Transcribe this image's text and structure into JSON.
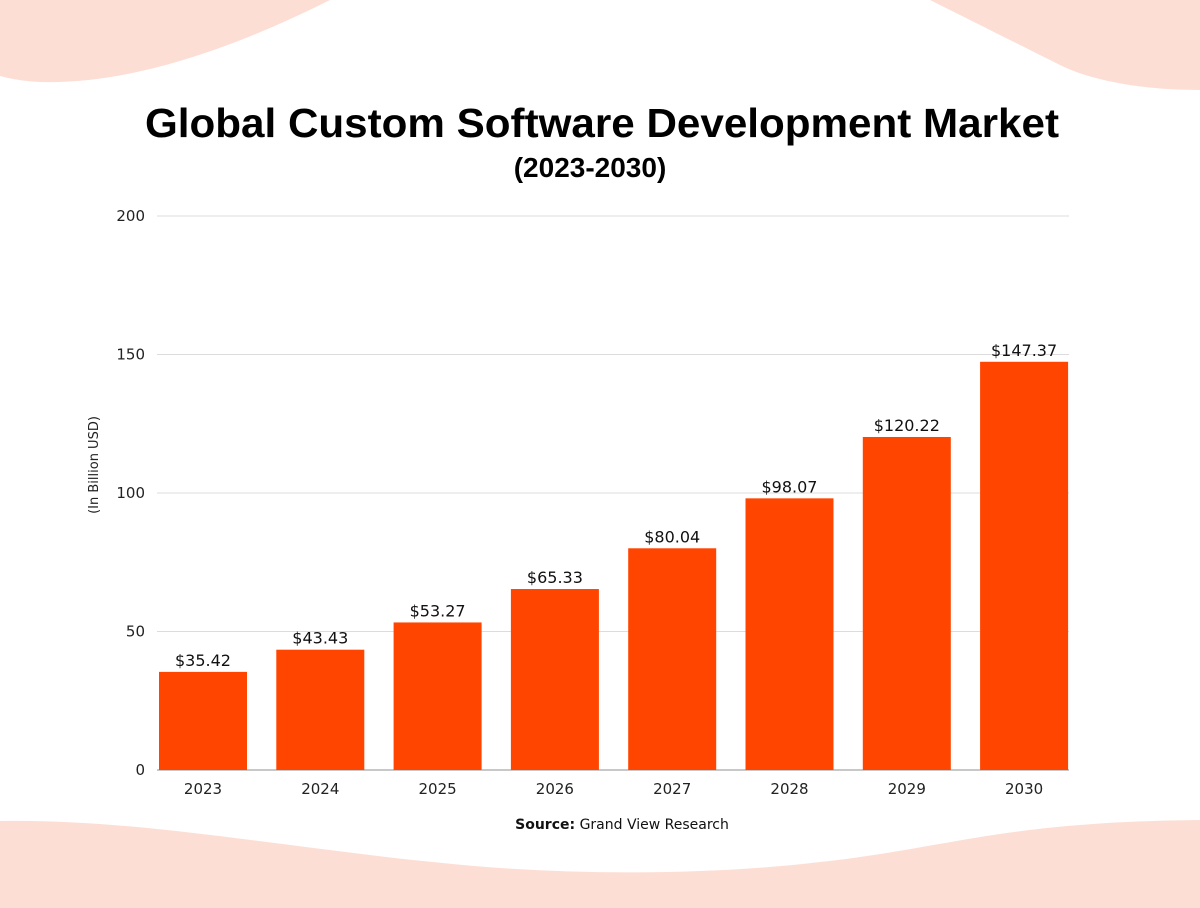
{
  "chart_data": {
    "type": "bar",
    "title": "Global Custom Software Development Market",
    "subtitle": "(2023-2030)",
    "xlabel": "",
    "ylabel": "(In Billion USD)",
    "ylim": [
      0,
      200
    ],
    "yticks": [
      0,
      50,
      100,
      150,
      200
    ],
    "grid": true,
    "categories": [
      "2023",
      "2024",
      "2025",
      "2026",
      "2027",
      "2028",
      "2029",
      "2030"
    ],
    "values": [
      35.42,
      43.43,
      53.27,
      65.33,
      80.04,
      98.07,
      120.22,
      147.37
    ],
    "data_labels": [
      "$35.42",
      "$43.43",
      "$53.27",
      "$65.33",
      "$80.04",
      "$98.07",
      "$120.22",
      "$147.37"
    ],
    "bar_color": "#FF4500",
    "background_accent": "#FDDED5"
  },
  "source": {
    "label": "Source:",
    "text": "Grand View Research"
  }
}
